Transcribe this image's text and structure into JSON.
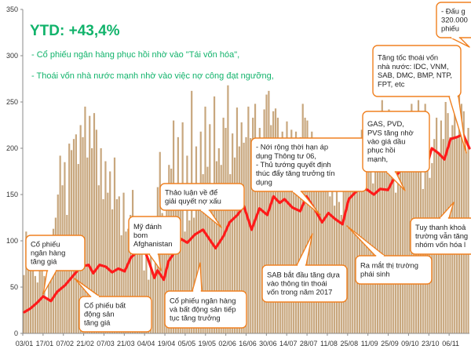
{
  "chart_data": {
    "type": "bar",
    "title": "YTD: +43,4%",
    "subtitle_lines": [
      "- Cổ phiếu ngân hàng phục hồi nhờ vào \"Tái vốn hóa\",",
      "- Thoái vốn nhà nước mạnh nhờ vào việc nợ công đạt ngưỡng,"
    ],
    "xlabel": "",
    "ylabel": "",
    "ylim": [
      0,
      350
    ],
    "y_ticks": [
      0,
      50,
      100,
      150,
      200,
      250,
      300,
      350
    ],
    "x_tick_labels": [
      "03/01",
      "17/01",
      "07/02",
      "21/02",
      "07/03",
      "21/03",
      "04/04",
      "19/04",
      "05/05",
      "19/05",
      "02/06",
      "16/06",
      "30/06",
      "14/07",
      "28/07",
      "11/08",
      "25/08",
      "11/09",
      "25/09",
      "09/10",
      "23/10",
      "06/11"
    ],
    "grid": false,
    "legend": "none",
    "series": [
      {
        "kind": "bars",
        "color": "#c8a77e",
        "values": [
          63,
          110,
          88,
          72,
          104,
          62,
          55,
          95,
          82,
          62,
          38,
          72,
          80,
          113,
          125,
          150,
          192,
          160,
          185,
          128,
          205,
          198,
          210,
          215,
          183,
          225,
          212,
          245,
          190,
          235,
          200,
          238,
          220,
          160,
          200,
          145,
          186,
          152,
          175,
          134,
          190,
          145,
          148,
          106,
          152,
          110,
          113,
          128,
          155,
          96,
          118,
          102,
          108,
          68,
          92,
          58,
          110,
          66,
          98,
          158,
          196,
          130,
          116,
          154,
          182,
          178,
          230,
          160,
          212,
          160,
          228,
          110,
          192,
          122,
          262,
          125,
          202,
          154,
          218,
          172,
          245,
          180,
          226,
          154,
          256,
          186,
          200,
          182,
          233,
          222,
          268,
          172,
          216,
          190,
          244,
          202,
          228,
          206,
          212,
          245,
          211,
          233,
          248,
          180,
          222,
          210,
          242,
          258,
          262,
          225,
          240,
          243,
          233,
          205,
          218,
          210,
          229,
          205,
          220,
          196,
          218,
          198,
          212,
          248,
          233,
          230,
          187,
          218,
          202,
          164,
          208,
          196,
          178,
          185,
          172,
          148,
          168,
          138,
          170,
          142,
          128,
          156,
          168,
          178,
          174,
          192,
          155,
          198,
          175,
          220,
          208,
          184,
          198,
          215,
          162,
          182,
          202,
          212,
          252,
          226,
          222,
          242,
          220,
          178,
          152,
          225,
          178,
          202,
          210,
          218,
          236,
          248,
          220,
          240,
          252,
          198,
          156,
          248,
          226,
          168,
          184,
          210,
          233,
          196,
          230,
          210,
          250,
          238,
          212,
          225,
          280,
          212,
          270,
          248,
          240,
          196,
          222
        ]
      },
      {
        "kind": "line",
        "color": "#ff1a1a",
        "x": [
          0,
          4,
          8,
          12,
          17,
          21,
          26,
          31,
          36,
          41,
          44,
          48,
          52,
          56,
          60,
          64,
          68,
          72,
          75,
          79,
          83,
          85,
          87,
          89,
          92,
          96,
          100,
          104,
          109,
          114,
          118,
          122,
          127,
          131,
          136,
          140,
          145,
          150,
          155,
          159,
          163,
          166,
          171,
          176,
          180,
          185,
          190,
          194,
          198,
          203,
          207,
          211,
          215,
          219,
          223,
          227,
          232,
          236,
          240,
          244,
          248,
          252,
          256,
          260,
          264,
          268,
          272,
          276,
          280,
          284
        ],
        "values": [
          23,
          27,
          33,
          40,
          35,
          45,
          52,
          62,
          72,
          74,
          65,
          74,
          72,
          66,
          70,
          67,
          82,
          88,
          97,
          80,
          60,
          68,
          63,
          58,
          78,
          88,
          102,
          98,
          107,
          112,
          102,
          92,
          105,
          120,
          128,
          138,
          112,
          135,
          128,
          148,
          141,
          145,
          136,
          132,
          148,
          135,
          120,
          130,
          124,
          118,
          145,
          152,
          158,
          155,
          150,
          156,
          155,
          168,
          176,
          192,
          200,
          188,
          176,
          200,
          195,
          188,
          210,
          212,
          215,
          200
        ]
      }
    ],
    "annotations": [
      {
        "text": [
          "Cổ phiếu",
          "ngân hàng",
          "tăng giá"
        ]
      },
      {
        "text": [
          "Cổ phiếu bất",
          "động sản",
          "tăng giá"
        ]
      },
      {
        "text": [
          "Mỹ đánh",
          "bom",
          "Afghanistan"
        ]
      },
      {
        "text": [
          "Thảo luận về để",
          "giải quyết nợ xấu"
        ]
      },
      {
        "text": [
          "Cổ phiếu ngân hàng",
          "và bất động sản tiếp",
          "tục tăng trưởng"
        ]
      },
      {
        "text": [
          "- Nới rộng thời hạn áp",
          "dụng Thông tư 06,",
          "- Thủ tướng quyết định",
          "thúc đẩy tăng trưởng tín",
          "dụng"
        ]
      },
      {
        "text": [
          "SAB bắt đầu tăng dựa",
          "vào thông tin thoái",
          "vốn trong năm 2017"
        ]
      },
      {
        "text": [
          "Ra mắt thị trường",
          "phái sinh"
        ]
      },
      {
        "text": [
          "GAS, PVD,",
          "PVS tăng nhờ",
          "vào giá dầu",
          "phục hồi",
          "mạnh,"
        ]
      },
      {
        "text": [
          "Tăng tốc thoái vốn",
          "nhà nước: IDC, VNM,",
          "SAB, DMC, BMP, NTP,",
          "FPT, etc"
        ]
      },
      {
        "text": [
          "Tuy thanh khoả",
          "trường vẫn tăng",
          "nhóm vốn hóa l"
        ]
      },
      {
        "text": [
          "- Đấu g",
          "320.000",
          "phiếu"
        ]
      }
    ]
  }
}
